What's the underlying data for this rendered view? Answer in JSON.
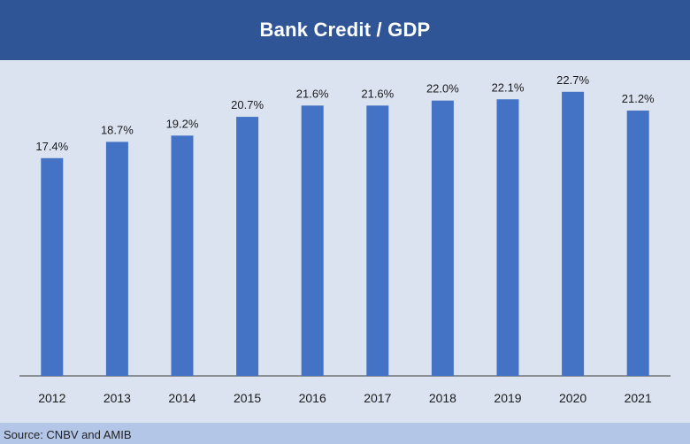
{
  "chart_data": {
    "type": "bar",
    "title": "Bank Credit / GDP",
    "categories": [
      "2012",
      "2013",
      "2014",
      "2015",
      "2016",
      "2017",
      "2018",
      "2019",
      "2020",
      "2021"
    ],
    "values": [
      17.4,
      18.7,
      19.2,
      20.7,
      21.6,
      21.6,
      22.0,
      22.1,
      22.7,
      21.2
    ],
    "value_labels": [
      "17.4%",
      "18.7%",
      "19.2%",
      "20.7%",
      "21.6%",
      "21.6%",
      "22.0%",
      "22.1%",
      "22.7%",
      "21.2%"
    ],
    "xlabel": "",
    "ylabel": "",
    "ylim": [
      0,
      25
    ],
    "grid": false,
    "legend": "none",
    "colors": {
      "bar": "#4472c4",
      "title_background": "#2f5597",
      "plot_background": "#dbe3f1",
      "footer_background": "#b4c6e7"
    }
  },
  "footer": {
    "source": "Source: CNBV and AMIB"
  }
}
